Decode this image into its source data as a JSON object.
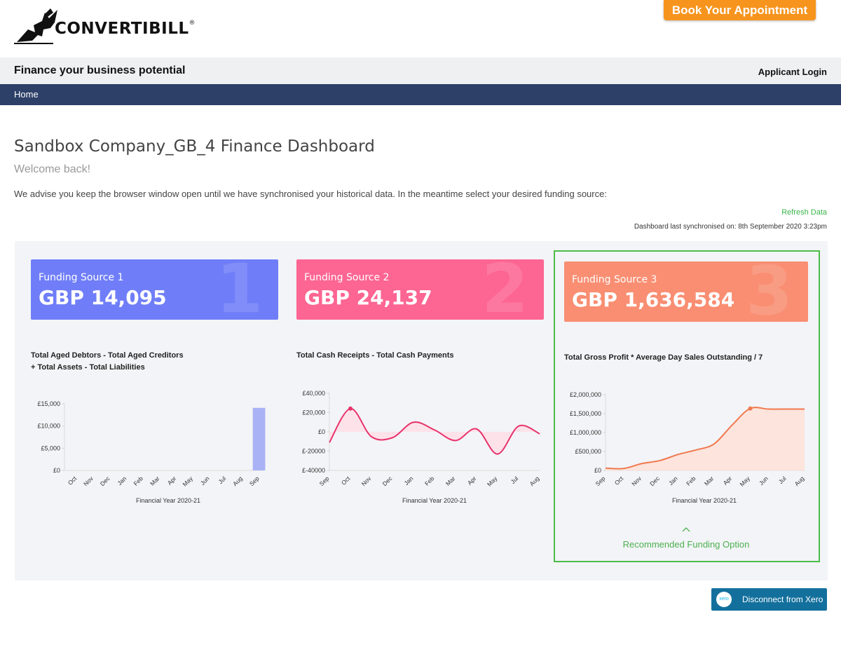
{
  "header": {
    "logo_text": "CONVERTIBILL",
    "logo_reg": "®",
    "book_button": "Book Your Appointment",
    "tagline": "Finance your business potential",
    "applicant_login": "Applicant Login"
  },
  "nav": {
    "home": "Home"
  },
  "page": {
    "title": "Sandbox Company_GB_4 Finance Dashboard",
    "welcome": "Welcome back!",
    "advise": "We advise you keep the browser window open until we have synchronised your historical data. In the meantime select your desired funding source:",
    "refresh": "Refresh Data",
    "sync": "Dashboard last synchronised on: 8th September 2020 3:23pm"
  },
  "cards": [
    {
      "label": "Funding Source 1",
      "value": "GBP 14,095",
      "num": "1",
      "color": "#6f7ef8"
    },
    {
      "label": "Funding Source 2",
      "value": "GBP 24,137",
      "num": "2",
      "color": "#fd6592"
    },
    {
      "label": "Funding Source 3",
      "value": "GBP 1,636,584",
      "num": "3",
      "color": "#f98e72"
    }
  ],
  "chart_titles": {
    "c1_line1": "Total Aged Debtors - Total Aged Creditors",
    "c1_line2": "+ Total Assets - Total Liabilities",
    "c2": "Total Cash Receipts - Total Cash Payments",
    "c3": "Total Gross Profit * Average Day Sales Outstanding / 7"
  },
  "recommended": "Recommended Funding Option",
  "xero": {
    "logo": "xero",
    "label": "Disconnect from Xero"
  },
  "chart_data": [
    {
      "type": "bar",
      "xlabel": "Financial Year 2020-21",
      "ylabel": "",
      "categories": [
        "Oct",
        "Nov",
        "Dec",
        "Jan",
        "Feb",
        "Mar",
        "Apr",
        "May",
        "Jun",
        "Jul",
        "Aug",
        "Sep"
      ],
      "values": [
        0,
        0,
        0,
        0,
        0,
        0,
        0,
        0,
        0,
        0,
        0,
        14095
      ],
      "ylim": [
        0,
        15000
      ],
      "yticks": [
        "£15,000",
        "£10,000",
        "£5,000",
        "£0"
      ],
      "color": "#aab2f6",
      "grid": false
    },
    {
      "type": "area",
      "xlabel": "Financial Year 2020-21",
      "ylabel": "",
      "categories": [
        "Sep",
        "Oct",
        "Nov",
        "Dec",
        "Jan",
        "Feb",
        "Mar",
        "Apr",
        "May",
        "Jul",
        "Aug"
      ],
      "values": [
        -11000,
        24137,
        -5000,
        -6000,
        10000,
        2000,
        -9000,
        3000,
        -23000,
        6000,
        -2000
      ],
      "ylim": [
        -40000,
        40000
      ],
      "yticks": [
        "£40,000",
        "£20,000",
        "£0",
        "£-20000",
        "£-40000"
      ],
      "color": "#e8336b",
      "fill": "#fde2ea",
      "highlight_index": 1,
      "grid": false
    },
    {
      "type": "area",
      "xlabel": "Financial Year 2020-21",
      "ylabel": "",
      "categories": [
        "Sep",
        "Oct",
        "Nov",
        "Dec",
        "Jan",
        "Feb",
        "Mar",
        "Apr",
        "May",
        "Jun",
        "Jul",
        "Aug"
      ],
      "values": [
        60000,
        50000,
        180000,
        260000,
        420000,
        540000,
        700000,
        1200000,
        1636584,
        1620000,
        1620000,
        1620000
      ],
      "ylim": [
        0,
        2000000
      ],
      "yticks": [
        "£2,000,000",
        "£1,500,000",
        "£1,000,000",
        "£500,000",
        "£0"
      ],
      "color": "#f0794f",
      "fill": "#fde4dc",
      "highlight_index": 8,
      "grid": false
    }
  ]
}
